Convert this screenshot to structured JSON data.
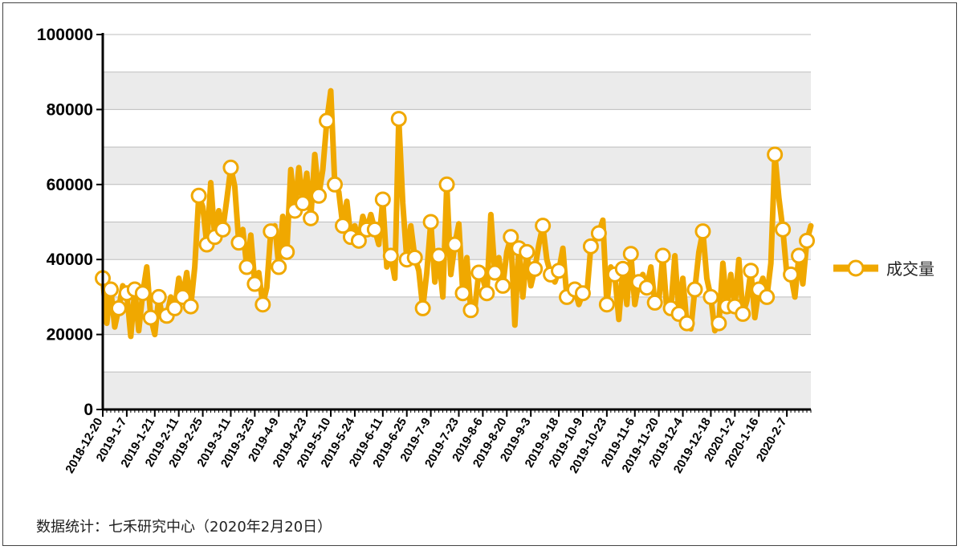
{
  "chart_data": {
    "type": "line",
    "title": "",
    "xlabel": "",
    "ylabel": "",
    "ylim": [
      0,
      100000
    ],
    "y_ticks": [
      "0",
      "20000",
      "40000",
      "60000",
      "80000",
      "100000"
    ],
    "x_tick_labels": [
      "2018-12-20",
      "2019-1-7",
      "2019-1-21",
      "2019-2-11",
      "2019-2-25",
      "2019-3-11",
      "2019-3-25",
      "2019-4-9",
      "2019-4-23",
      "2019-5-10",
      "2019-5-24",
      "2019-6-11",
      "2019-6-25",
      "2019-7-9",
      "2019-7-23",
      "2019-8-6",
      "2019-8-20",
      "2019-9-3",
      "2019-9-18",
      "2019-10-9",
      "2019-10-23",
      "2019-11-6",
      "2019-11-20",
      "2019-12-4",
      "2019-12-18",
      "2020-1-2",
      "2020-1-16",
      "2020-2-7"
    ],
    "grid": true,
    "legend_position": "right",
    "colors": {
      "line": "#F0A800",
      "marker_fill": "#FFFFFF",
      "band": "#EBEBEB",
      "grid": "#BDBDBD"
    },
    "series": [
      {
        "name": "成交量",
        "values": [
          35000,
          23000,
          32000,
          22000,
          27000,
          33000,
          31000,
          19500,
          32000,
          21000,
          31000,
          38000,
          24500,
          20000,
          30000,
          24000,
          25000,
          30000,
          27000,
          35000,
          30000,
          36500,
          27500,
          38000,
          57000,
          54000,
          44000,
          60500,
          46000,
          53000,
          48000,
          56000,
          64500,
          59500,
          44500,
          48000,
          38000,
          46500,
          33500,
          36500,
          28000,
          32500,
          47500,
          49000,
          38000,
          51500,
          42000,
          64000,
          53000,
          64500,
          55000,
          63000,
          51000,
          68000,
          57000,
          64000,
          77000,
          85000,
          60000,
          58000,
          49000,
          55500,
          46000,
          49000,
          45000,
          51500,
          48000,
          52000,
          48000,
          44000,
          56000,
          38000,
          41000,
          35000,
          77500,
          55000,
          40000,
          49000,
          40500,
          37000,
          27000,
          36500,
          50000,
          34000,
          41000,
          30000,
          60000,
          36000,
          44000,
          49500,
          31000,
          40500,
          26500,
          27000,
          36500,
          35000,
          31000,
          52000,
          36500,
          40500,
          33000,
          42000,
          46000,
          22500,
          43000,
          30000,
          42000,
          33000,
          37500,
          44000,
          49000,
          40000,
          36000,
          34000,
          37000,
          43000,
          30000,
          31500,
          32000,
          28000,
          31000,
          30500,
          43500,
          45000,
          47000,
          50500,
          28000,
          38000,
          36000,
          24000,
          37500,
          28000,
          41500,
          28000,
          34000,
          36000,
          32500,
          38000,
          28500,
          29000,
          41000,
          26500,
          27000,
          41000,
          25500,
          35000,
          23000,
          21500,
          32000,
          42000,
          47500,
          35000,
          30000,
          21000,
          23000,
          39000,
          27500,
          36000,
          27500,
          40000,
          25500,
          29000,
          37000,
          24500,
          32000,
          35000,
          30000,
          39000,
          68000,
          56500,
          48000,
          36000,
          36000,
          30000,
          41000,
          33500,
          45000,
          49000
        ]
      }
    ]
  },
  "source_note": "数据统计：七禾研究中心（2020年2月20日）"
}
